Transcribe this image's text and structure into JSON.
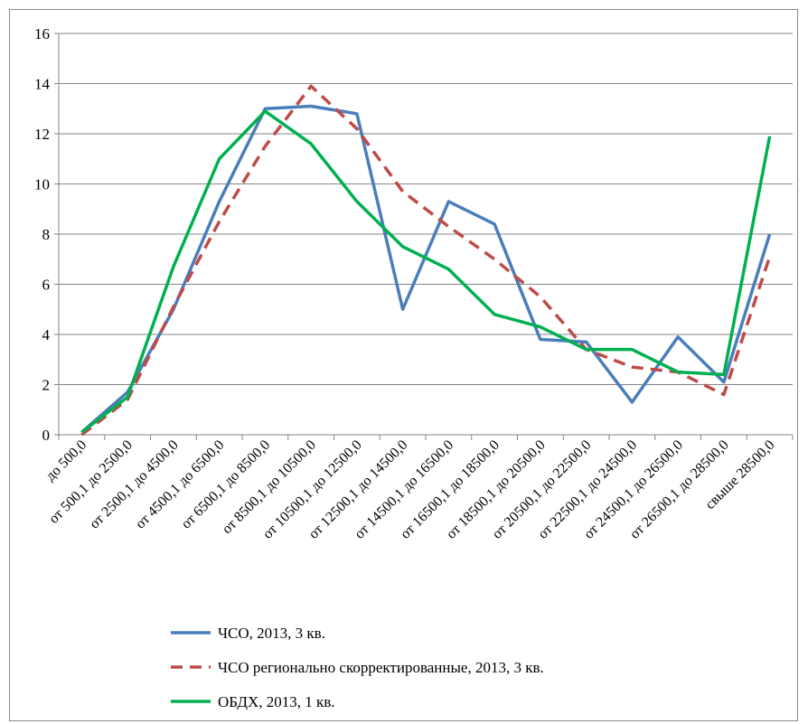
{
  "chart_data": {
    "type": "line",
    "title": "",
    "xlabel": "",
    "ylabel": "",
    "ylim": [
      0,
      16
    ],
    "y_ticks": [
      0,
      2,
      4,
      6,
      8,
      10,
      12,
      14,
      16
    ],
    "grid": "horizontal",
    "legend_placement": "bottom",
    "categories": [
      "до 500,0",
      "от 500,1 до 2500,0",
      "от 2500,1 до 4500,0",
      "от 4500,1 до 6500,0",
      "от 6500,1 до 8500,0",
      "от 8500,1 до 10500,0",
      "от 10500,1 до 12500,0",
      "от 12500,1 до 14500,0",
      "от 14500,1 до 16500,0",
      "от 16500,1 до 18500,0",
      "от 18500,1 до 20500,0",
      "от 20500,1 до 22500,0",
      "от 22500,1 до 24500,0",
      "от 24500,1 до 26500,0",
      "от 26500,1 до 28500,0",
      "свыше 28500,0"
    ],
    "series": [
      {
        "name": "ЧСО, 2013, 3 кв.",
        "color": "#4a7ebb",
        "dash": "solid",
        "values": [
          0.1,
          1.7,
          5.0,
          9.3,
          13.0,
          13.1,
          12.8,
          5.0,
          9.3,
          8.4,
          3.8,
          3.7,
          1.3,
          3.9,
          2.1,
          8.0
        ]
      },
      {
        "name": "ЧСО регионально скорректированные, 2013, 3 кв.",
        "color": "#be4b48",
        "dash": "dashed",
        "values": [
          0.0,
          1.4,
          5.1,
          8.5,
          11.5,
          13.9,
          12.2,
          9.7,
          8.3,
          7.0,
          5.5,
          3.4,
          2.7,
          2.5,
          1.6,
          7.1
        ]
      },
      {
        "name": "ОБДХ, 2013, 1 кв.",
        "color": "#00b050",
        "dash": "solid",
        "values": [
          0.1,
          1.5,
          6.7,
          11.0,
          12.9,
          11.6,
          9.3,
          7.5,
          6.6,
          4.8,
          4.3,
          3.4,
          3.4,
          2.5,
          2.4,
          11.9
        ]
      }
    ]
  }
}
